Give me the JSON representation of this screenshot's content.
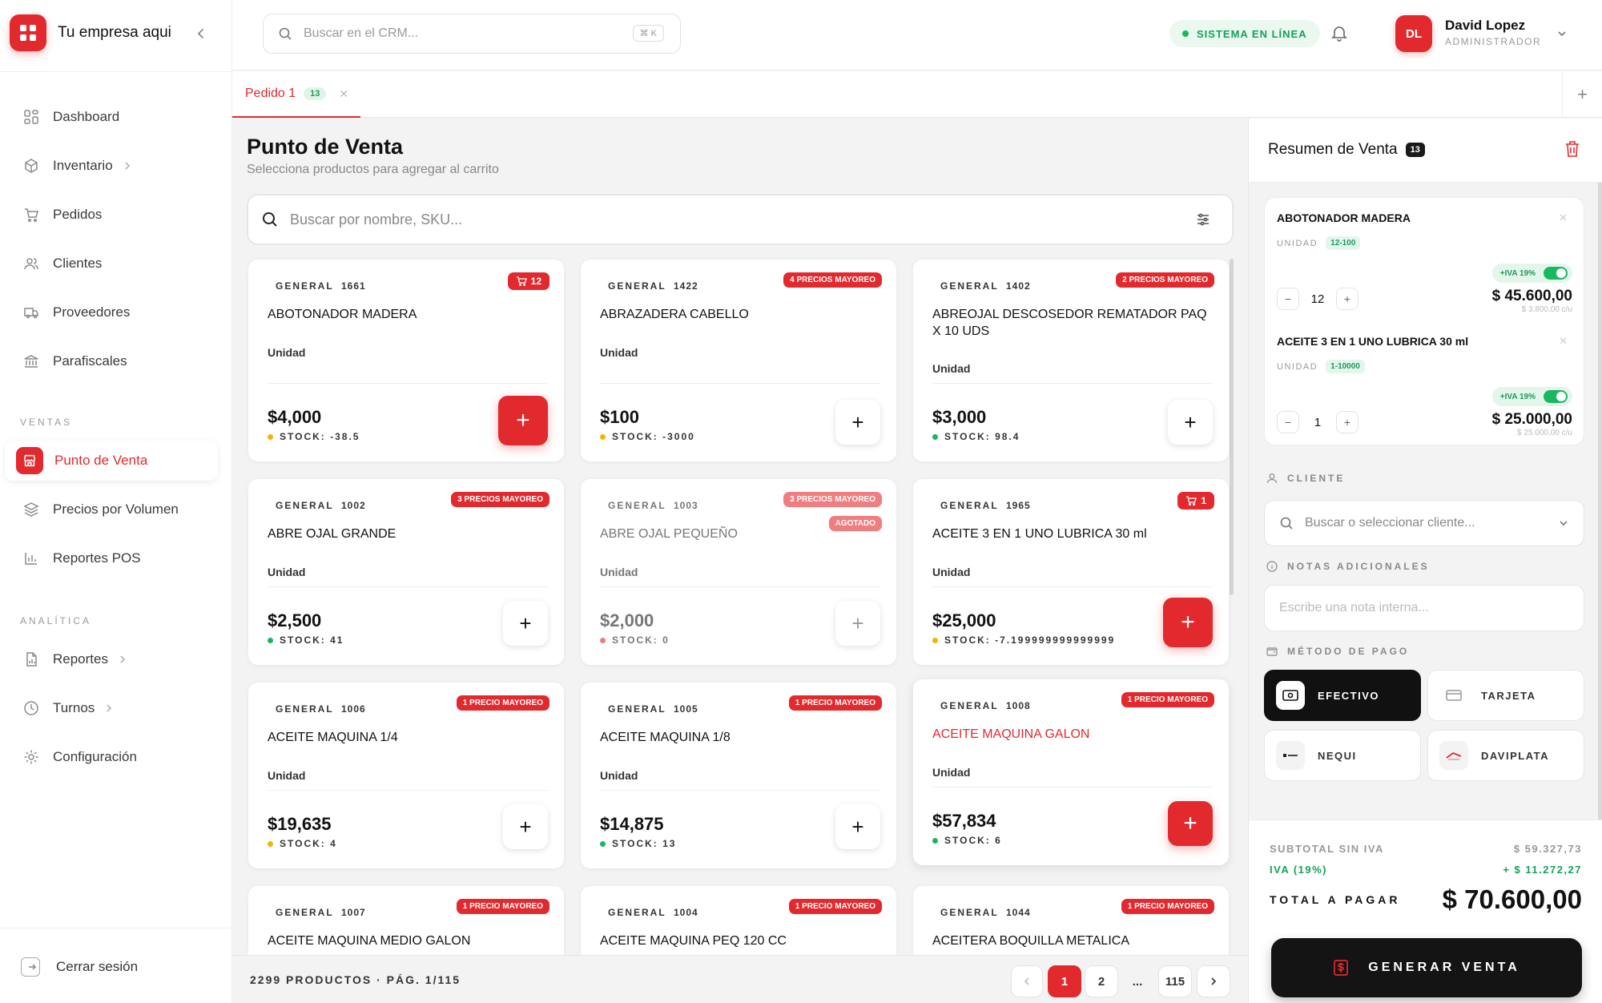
{
  "app": {
    "brand": "Tu empresa aqui"
  },
  "sidebar": {
    "items": [
      {
        "label": "Dashboard"
      },
      {
        "label": "Inventario"
      },
      {
        "label": "Pedidos"
      },
      {
        "label": "Clientes"
      },
      {
        "label": "Proveedores"
      },
      {
        "label": "Parafiscales"
      }
    ],
    "section_ventas": "VENTAS",
    "ventas_items": [
      {
        "label": "Punto de Venta"
      },
      {
        "label": "Precios por Volumen"
      },
      {
        "label": "Reportes POS"
      }
    ],
    "section_analitica": "ANALÍTICA",
    "analitica_items": [
      {
        "label": "Reportes"
      },
      {
        "label": "Turnos"
      },
      {
        "label": "Configuración"
      }
    ],
    "logout": "Cerrar sesión"
  },
  "topbar": {
    "search_placeholder": "Buscar en el CRM...",
    "shortcut": "⌘ K",
    "status": "SISTEMA EN LÍNEA",
    "user_initials": "DL",
    "user_name": "David Lopez",
    "user_role": "ADMINISTRADOR"
  },
  "tabs": [
    {
      "label": "Pedido 1",
      "count": "13"
    }
  ],
  "main": {
    "title": "Punto de Venta",
    "subtitle": "Selecciona productos para agregar al carrito",
    "search_placeholder": "Buscar por nombre, SKU..."
  },
  "products": [
    {
      "category": "GENERAL",
      "code": "1661",
      "name": "ABOTONADOR MADERA",
      "unit": "Unidad",
      "price": "$4,000",
      "stock": "STOCK: -38.5",
      "stock_color": "#f5b400",
      "badge": "12",
      "badge_type": "cart"
    },
    {
      "category": "GENERAL",
      "code": "1422",
      "name": "ABRAZADERA CABELLO",
      "unit": "Unidad",
      "price": "$100",
      "stock": "STOCK: -3000",
      "stock_color": "#f5b400",
      "badge": "4 PRECIOS MAYOREO"
    },
    {
      "category": "GENERAL",
      "code": "1402",
      "name": "ABREOJAL DESCOSEDOR REMATADOR PAQ X 10 UDS",
      "unit": "Unidad",
      "price": "$3,000",
      "stock": "STOCK: 98.4",
      "stock_color": "#19b760",
      "badge": "2 PRECIOS MAYOREO"
    },
    {
      "category": "GENERAL",
      "code": "1002",
      "name": "ABRE OJAL GRANDE",
      "unit": "Unidad",
      "price": "$2,500",
      "stock": "STOCK: 41",
      "stock_color": "#19b760",
      "badge": "3 PRECIOS MAYOREO"
    },
    {
      "category": "GENERAL",
      "code": "1003",
      "name": "ABRE OJAL PEQUEÑO",
      "unit": "Unidad",
      "price": "$2,000",
      "stock": "STOCK: 0",
      "stock_color": "#f07d80",
      "badge": "3 PRECIOS MAYOREO",
      "badge2": "AGOTADO"
    },
    {
      "category": "GENERAL",
      "code": "1965",
      "name": "ACEITE 3 EN 1 UNO LUBRICA 30 ml",
      "unit": "Unidad",
      "price": "$25,000",
      "stock": "STOCK: -7.199999999999999",
      "stock_color": "#f5b400",
      "badge": "1",
      "badge_type": "cart"
    },
    {
      "category": "GENERAL",
      "code": "1006",
      "name": "ACEITE MAQUINA 1/4",
      "unit": "Unidad",
      "price": "$19,635",
      "stock": "STOCK: 4",
      "stock_color": "#f5b400",
      "badge": "1 PRECIO MAYOREO"
    },
    {
      "category": "GENERAL",
      "code": "1005",
      "name": "ACEITE MAQUINA 1/8",
      "unit": "Unidad",
      "price": "$14,875",
      "stock": "STOCK: 13",
      "stock_color": "#19b760",
      "badge": "1 PRECIO MAYOREO"
    },
    {
      "category": "GENERAL",
      "code": "1008",
      "name": "ACEITE MAQUINA GALON",
      "unit": "Unidad",
      "price": "$57,834",
      "stock": "STOCK: 6",
      "stock_color": "#19b760",
      "badge": "1 PRECIO MAYOREO"
    },
    {
      "category": "GENERAL",
      "code": "1007",
      "name": "ACEITE MAQUINA MEDIO GALON",
      "badge": "1 PRECIO MAYOREO"
    },
    {
      "category": "GENERAL",
      "code": "1004",
      "name": "ACEITE MAQUINA PEQ 120 CC",
      "badge": "1 PRECIO MAYOREO"
    },
    {
      "category": "GENERAL",
      "code": "1044",
      "name": "ACEITERA BOQUILLA METALICA",
      "badge": "1 PRECIO MAYOREO"
    }
  ],
  "footer": {
    "count": "2299 PRODUCTOS · PÁG. 1/115",
    "pages": [
      "1",
      "2",
      "...",
      "115"
    ]
  },
  "summary": {
    "title": "Resumen de Venta",
    "count": "13",
    "items": [
      {
        "name": "ABOTONADOR MADERA",
        "unit": "UNIDAD",
        "range": "12-100",
        "iva": "+IVA 19%",
        "qty": "12",
        "price": "$ 45.600,00",
        "each": "$ 3.800,00 c/u"
      },
      {
        "name": "ACEITE 3 EN 1 UNO LUBRICA 30 ml",
        "unit": "UNIDAD",
        "range": "1-10000",
        "iva": "+IVA 19%",
        "qty": "1",
        "price": "$ 25.000,00",
        "each": "$ 25.000,00 c/u"
      }
    ],
    "client_label": "CLIENTE",
    "client_placeholder": "Buscar o seleccionar cliente...",
    "notes_label": "NOTAS ADICIONALES",
    "notes_placeholder": "Escribe una nota interna...",
    "payment_label": "MÉTODO DE PAGO",
    "payments": [
      "EFECTIVO",
      "TARJETA",
      "NEQUI",
      "DAVIPLATA"
    ],
    "subtotal_label": "SUBTOTAL SIN IVA",
    "subtotal": "$ 59.327,73",
    "iva_label": "IVA (19%)",
    "iva": "+ $ 11.272,27",
    "total_label": "TOTAL A PAGAR",
    "total": "$ 70.600,00",
    "generate": "GENERAR VENTA"
  },
  "colors": {
    "accent": "#e22a2e",
    "success": "#19b760",
    "warning": "#f5b400"
  }
}
